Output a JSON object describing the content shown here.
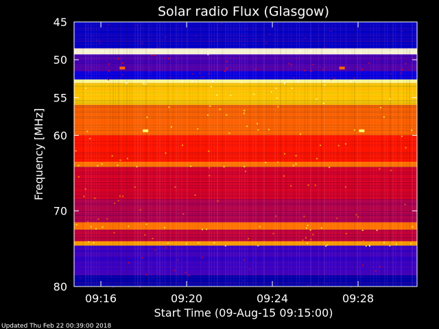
{
  "chart_data": {
    "type": "heatmap",
    "title": "Solar radio Flux (Glasgow)",
    "xlabel": "Start Time (09-Aug-15 09:15:00)",
    "ylabel": "Frequency [MHz]",
    "x_unit": "time",
    "xlim": [
      "09:14:45",
      "09:30:45"
    ],
    "ylim": [
      45,
      80
    ],
    "y_scale": "linear-descending",
    "x_ticks": [
      "09:16",
      "09:20",
      "09:24",
      "09:28"
    ],
    "y_ticks": [
      45,
      50,
      55,
      60,
      70,
      80
    ],
    "colormap": [
      "#000050",
      "#0000ff",
      "#ff0000",
      "#ffff00",
      "#ffffff"
    ],
    "bands": [
      {
        "from": 45.0,
        "to": 48.5,
        "level": 0.18
      },
      {
        "from": 48.5,
        "to": 49.3,
        "level": 0.97
      },
      {
        "from": 49.3,
        "to": 51.5,
        "level": 0.32
      },
      {
        "from": 51.5,
        "to": 52.6,
        "level": 0.22
      },
      {
        "from": 52.6,
        "to": 53.1,
        "level": 0.9
      },
      {
        "from": 53.1,
        "to": 56.0,
        "level": 0.7
      },
      {
        "from": 56.0,
        "to": 60.0,
        "level": 0.6
      },
      {
        "from": 60.0,
        "to": 63.5,
        "level": 0.52
      },
      {
        "from": 63.5,
        "to": 64.2,
        "level": 0.62
      },
      {
        "from": 64.2,
        "to": 68.5,
        "level": 0.46
      },
      {
        "from": 68.5,
        "to": 71.5,
        "level": 0.42
      },
      {
        "from": 71.5,
        "to": 72.5,
        "level": 0.62
      },
      {
        "from": 72.5,
        "to": 74.0,
        "level": 0.44
      },
      {
        "from": 74.0,
        "to": 74.6,
        "level": 0.66
      },
      {
        "from": 74.6,
        "to": 78.5,
        "level": 0.3
      },
      {
        "from": 78.5,
        "to": 80.0,
        "level": 0.14
      }
    ],
    "bursts": [
      {
        "time": "09:18:05",
        "freq": 59.4,
        "level": 0.85
      },
      {
        "time": "09:28:10",
        "freq": 59.4,
        "level": 0.85
      },
      {
        "time": "09:17:00",
        "freq": 51.1,
        "level": 0.6
      },
      {
        "time": "09:27:15",
        "freq": 51.1,
        "level": 0.6
      }
    ]
  },
  "footer": {
    "updated": "Updated Thu Feb 22 00:39:00 2018"
  }
}
